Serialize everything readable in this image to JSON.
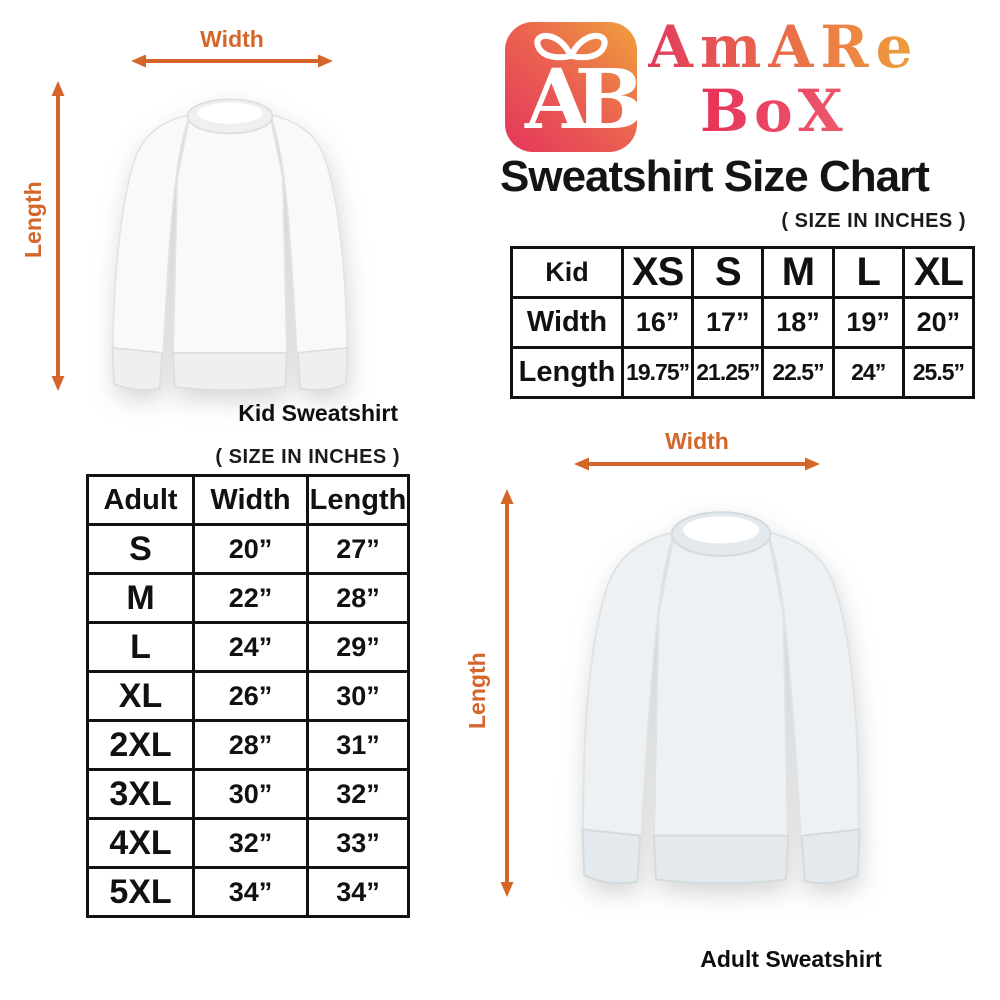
{
  "brand": {
    "monogram": "AB",
    "name_line1": "AmARe",
    "name_line2": "BoX"
  },
  "title": "Sweatshirt Size Chart",
  "kid_section": {
    "size_note": "( SIZE IN INCHES )",
    "width_label": "Width",
    "length_label": "Length",
    "caption": "Kid Sweatshirt"
  },
  "adult_section": {
    "size_note": "( SIZE IN INCHES )",
    "width_label": "Width",
    "length_label": "Length",
    "caption": "Adult Sweatshirt"
  },
  "colors": {
    "accent_orange": "#D5662A",
    "brand_pink": "#E5365C",
    "brand_orange": "#EFA03A",
    "table_border": "#111111",
    "title_black": "#141414"
  },
  "chart_data": [
    {
      "type": "table",
      "name": "kid_sweatshirt_sizes",
      "unit": "inches",
      "columns": [
        "Kid",
        "XS",
        "S",
        "M",
        "L",
        "XL"
      ],
      "rows": [
        [
          "Width",
          "16”",
          "17”",
          "18”",
          "19”",
          "20”"
        ],
        [
          "Length",
          "19.75”",
          "21.25”",
          "22.5”",
          "24”",
          "25.5”"
        ]
      ]
    },
    {
      "type": "table",
      "name": "adult_sweatshirt_sizes",
      "unit": "inches",
      "columns": [
        "Adult",
        "Width",
        "Length"
      ],
      "rows": [
        [
          "S",
          "20”",
          "27”"
        ],
        [
          "M",
          "22”",
          "28”"
        ],
        [
          "L",
          "24”",
          "29”"
        ],
        [
          "XL",
          "26”",
          "30”"
        ],
        [
          "2XL",
          "28”",
          "31”"
        ],
        [
          "3XL",
          "30”",
          "32”"
        ],
        [
          "4XL",
          "32”",
          "33”"
        ],
        [
          "5XL",
          "34”",
          "34”"
        ]
      ]
    }
  ]
}
